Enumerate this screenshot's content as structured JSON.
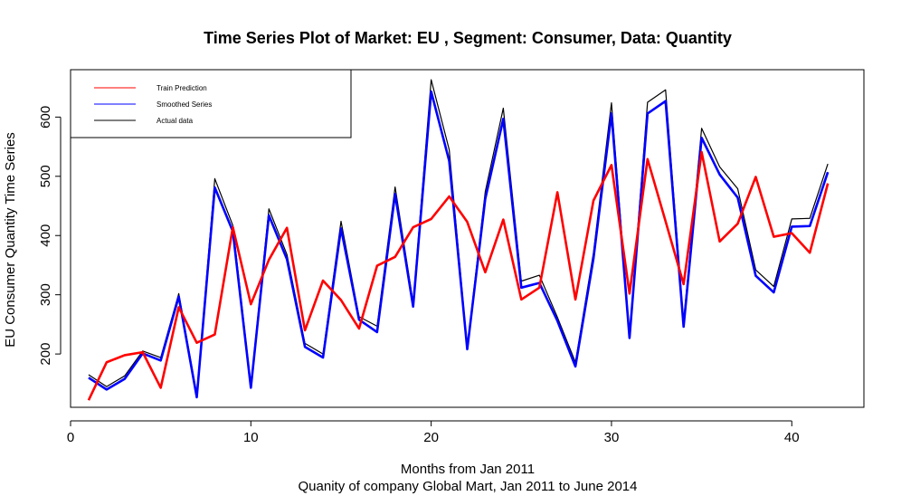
{
  "chart_data": {
    "type": "line",
    "title": "Time Series Plot of Market: EU , Segment: Consumer, Data: Quantity",
    "xlabel": "Months from Jan 2011",
    "sub": "Quanity of company Global Mart, Jan 2011 to June 2014",
    "ylabel": "EU Consumer Quantity Time Series",
    "xlim": [
      0,
      44
    ],
    "ylim": [
      110,
      680
    ],
    "xticks": [
      0,
      10,
      20,
      30,
      40
    ],
    "yticks": [
      200,
      300,
      400,
      500,
      600
    ],
    "legend_position": "top-left",
    "x": [
      1,
      2,
      3,
      4,
      5,
      6,
      7,
      8,
      9,
      10,
      11,
      12,
      13,
      14,
      15,
      16,
      17,
      18,
      19,
      20,
      21,
      22,
      23,
      24,
      25,
      26,
      27,
      28,
      29,
      30,
      31,
      32,
      33,
      34,
      35,
      36,
      37,
      38,
      39,
      40,
      41,
      42
    ],
    "series": [
      {
        "name": "Actual data",
        "color": "#000000",
        "width": 1.2,
        "values": [
          165,
          145,
          163,
          205,
          194,
          302,
          132,
          496,
          417,
          148,
          445,
          368,
          218,
          200,
          424,
          263,
          247,
          482,
          287,
          663,
          545,
          212,
          474,
          615,
          323,
          333,
          262,
          186,
          371,
          624,
          233,
          625,
          646,
          254,
          581,
          516,
          479,
          342,
          314,
          428,
          429,
          521
        ]
      },
      {
        "name": "Smoothed Series",
        "color": "#0000ff",
        "width": 2.6,
        "values": [
          160,
          140,
          158,
          201,
          189,
          297,
          127,
          481,
          407,
          143,
          434,
          360,
          212,
          194,
          412,
          258,
          237,
          470,
          280,
          643,
          526,
          208,
          462,
          597,
          312,
          320,
          256,
          179,
          361,
          606,
          227,
          606,
          627,
          246,
          565,
          503,
          464,
          332,
          304,
          415,
          416,
          507
        ]
      },
      {
        "name": "Train Prediction",
        "color": "#ff0000",
        "width": 2.6,
        "values": [
          122,
          186,
          198,
          203,
          143,
          279,
          219,
          233,
          414,
          284,
          359,
          413,
          240,
          324,
          291,
          243,
          349,
          364,
          414,
          428,
          466,
          423,
          338,
          427,
          292,
          312,
          473,
          292,
          459,
          519,
          302,
          529,
          424,
          318,
          541,
          390,
          420,
          499,
          398,
          404,
          371,
          488
        ]
      }
    ]
  }
}
